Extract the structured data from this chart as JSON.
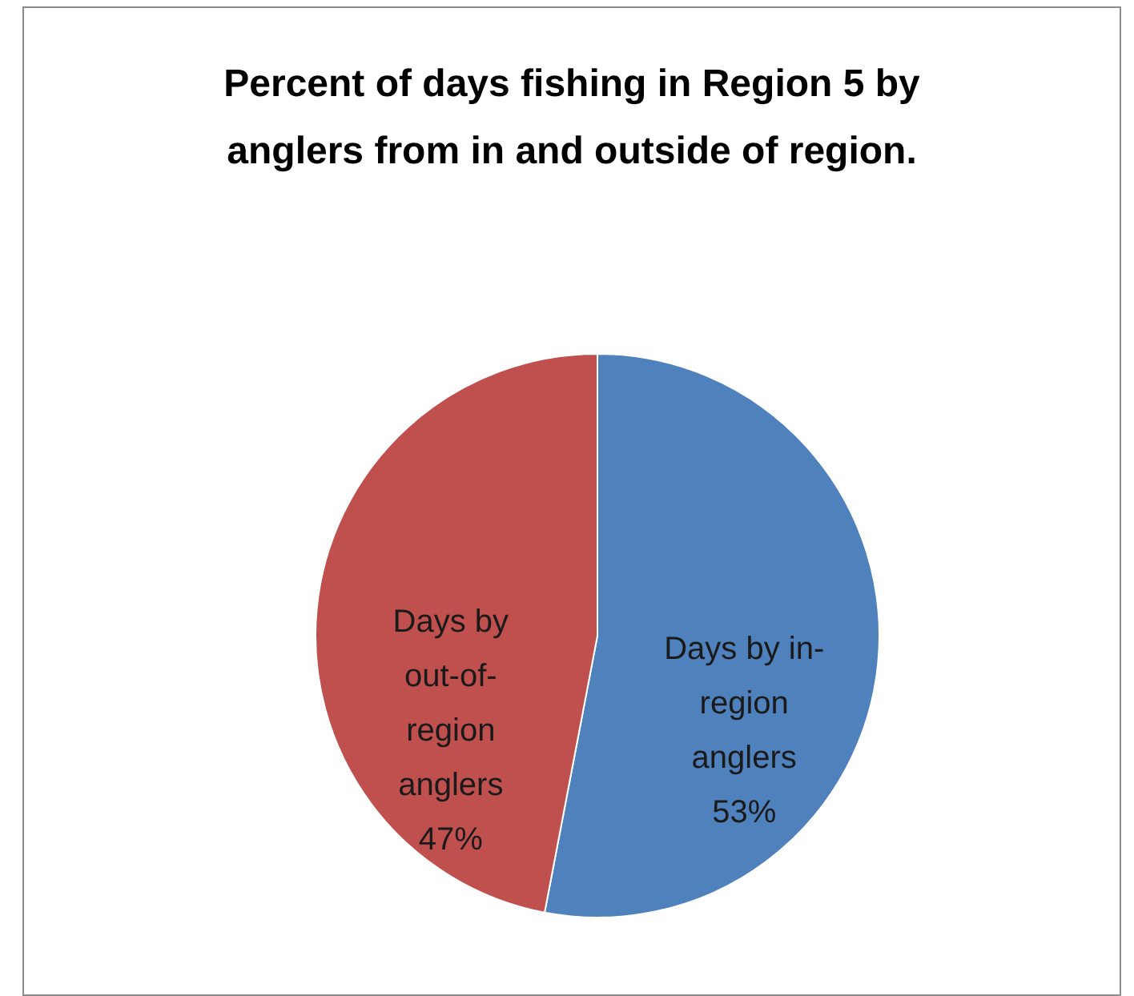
{
  "chart_data": {
    "type": "pie",
    "title": "Percent of days fishing in Region 5 by anglers from in and outside of region.",
    "categories": [
      "Days by in-region anglers",
      "Days by out-of-region anglers"
    ],
    "values": [
      53,
      47
    ],
    "value_labels": [
      "53%",
      "47%"
    ],
    "colors": [
      "#4f81bd",
      "#c0504d"
    ]
  }
}
